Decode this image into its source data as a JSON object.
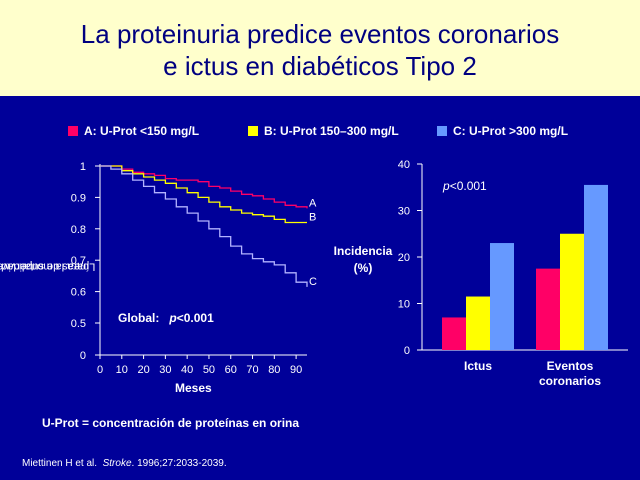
{
  "title": {
    "line1": "La proteinuria predice eventos coronarios",
    "line2": "e ictus en diabéticos Tipo 2"
  },
  "legend": [
    {
      "label": "A: U-Prot <150 mg/L",
      "color": "#ff0066"
    },
    {
      "label": "B: U-Prot 150–300 mg/L",
      "color": "#ffff00"
    },
    {
      "label": "C: U-Prot >300 mg/L",
      "color": "#6699ff"
    }
  ],
  "survival_chart": {
    "ylabel_line1": "Líneas de supervivencia",
    "ylabel_line2": "para la mortalidad CV",
    "xlabel": "Meses",
    "annotation_label": "Global:",
    "annotation_p": "p",
    "annotation_value": "<0.001"
  },
  "bar_chart": {
    "ylabel_line1": "Incidencia",
    "ylabel_line2": "(%)",
    "p_prefix": "p",
    "p_value": "<0.001"
  },
  "footnote": "U-Prot = concentración de proteínas en orina",
  "citation": {
    "authors": "Miettinen   H et al.",
    "journal": "Stroke",
    "details": ".   1996;27:2033-2039."
  },
  "chart_data": [
    {
      "type": "line",
      "x": [
        0,
        5,
        10,
        15,
        20,
        25,
        30,
        35,
        40,
        45,
        50,
        55,
        60,
        65,
        70,
        75,
        80,
        85,
        90,
        95
      ],
      "series": [
        {
          "name": "A",
          "color": "#ff0066",
          "values": [
            1.0,
            1.0,
            0.99,
            0.98,
            0.975,
            0.97,
            0.96,
            0.955,
            0.955,
            0.95,
            0.935,
            0.93,
            0.92,
            0.91,
            0.905,
            0.895,
            0.885,
            0.875,
            0.87,
            0.865
          ]
        },
        {
          "name": "B",
          "color": "#ffff00",
          "values": [
            1.0,
            1.0,
            0.985,
            0.975,
            0.965,
            0.955,
            0.945,
            0.93,
            0.915,
            0.9,
            0.885,
            0.87,
            0.86,
            0.85,
            0.845,
            0.84,
            0.83,
            0.82,
            0.82,
            0.82
          ]
        },
        {
          "name": "C",
          "color": "#b3b3ff",
          "values": [
            1.0,
            0.99,
            0.975,
            0.955,
            0.935,
            0.915,
            0.895,
            0.87,
            0.85,
            0.825,
            0.8,
            0.775,
            0.745,
            0.72,
            0.705,
            0.695,
            0.685,
            0.66,
            0.63,
            0.615
          ]
        }
      ],
      "yticks": [
        0,
        0.5,
        0.6,
        0.7,
        0.8,
        0.9,
        1
      ],
      "xticks": [
        0,
        10,
        20,
        30,
        40,
        50,
        60,
        70,
        80,
        90
      ],
      "ylim": [
        0,
        1
      ],
      "xlim": [
        0,
        95
      ],
      "xlabel": "Meses",
      "ylabel": "Líneas de supervivencia para la mortalidad CV"
    },
    {
      "type": "bar",
      "categories": [
        "Ictus",
        "Eventos coronarios"
      ],
      "series": [
        {
          "name": "A",
          "color": "#ff0066",
          "values": [
            7,
            17.5
          ]
        },
        {
          "name": "B",
          "color": "#ffff00",
          "values": [
            11.5,
            25
          ]
        },
        {
          "name": "C",
          "color": "#6699ff",
          "values": [
            23,
            35.5
          ]
        }
      ],
      "yticks": [
        0,
        10,
        20,
        30,
        40
      ],
      "ylim": [
        0,
        40
      ],
      "ylabel": "Incidencia (%)"
    }
  ]
}
